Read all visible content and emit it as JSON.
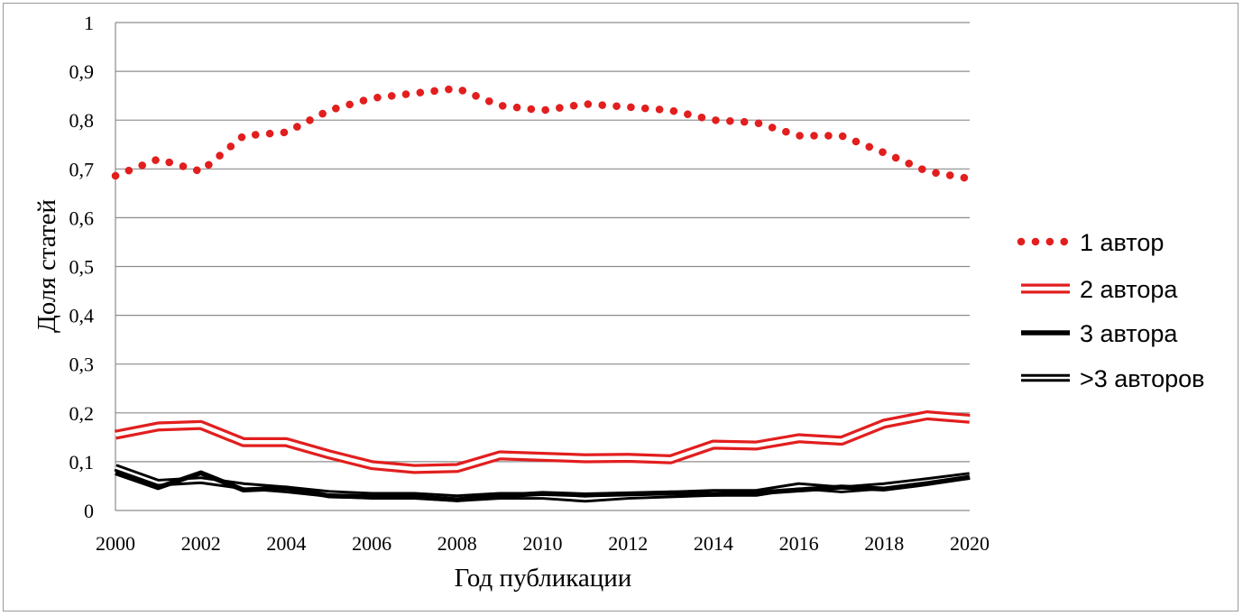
{
  "chart_data": {
    "type": "line",
    "title": "",
    "xlabel": "Год публикации",
    "ylabel": "Доля статей",
    "x": [
      2000,
      2001,
      2002,
      2003,
      2004,
      2005,
      2006,
      2007,
      2008,
      2009,
      2010,
      2011,
      2012,
      2013,
      2014,
      2015,
      2016,
      2017,
      2018,
      2019,
      2020
    ],
    "xlim": [
      2000,
      2020
    ],
    "ylim": [
      0,
      1
    ],
    "x_ticks": [
      "2000",
      "2002",
      "2004",
      "2006",
      "2008",
      "2010",
      "2012",
      "2014",
      "2016",
      "2018",
      "2020"
    ],
    "y_ticks": [
      "0",
      "0,1",
      "0,2",
      "0,3",
      "0,4",
      "0,5",
      "0,6",
      "0,7",
      "0,8",
      "0,9",
      "1"
    ],
    "grid": "horizontal",
    "legend_position": "right",
    "series": [
      {
        "name": "1 автор",
        "style": "dotted",
        "color": "#e21e1e",
        "values": [
          0.686,
          0.72,
          0.695,
          0.768,
          0.775,
          0.82,
          0.845,
          0.855,
          0.865,
          0.83,
          0.82,
          0.833,
          0.827,
          0.82,
          0.8,
          0.795,
          0.768,
          0.768,
          0.733,
          0.695,
          0.68
        ]
      },
      {
        "name": "2 автора",
        "style": "double",
        "color": "#e21e1e",
        "values": [
          0.155,
          0.172,
          0.175,
          0.14,
          0.14,
          0.115,
          0.093,
          0.085,
          0.087,
          0.113,
          0.11,
          0.107,
          0.108,
          0.105,
          0.135,
          0.133,
          0.148,
          0.143,
          0.178,
          0.195,
          0.188
        ]
      },
      {
        "name": "3 автора",
        "style": "solid",
        "color": "#000000",
        "values": [
          0.077,
          0.047,
          0.077,
          0.042,
          0.046,
          0.03,
          0.028,
          0.028,
          0.022,
          0.03,
          0.035,
          0.032,
          0.034,
          0.036,
          0.033,
          0.036,
          0.042,
          0.048,
          0.044,
          0.055,
          0.068
        ]
      },
      {
        "name": ">3 авторов",
        "style": "double",
        "color": "#000000",
        "values": [
          0.088,
          0.057,
          0.062,
          0.05,
          0.043,
          0.034,
          0.03,
          0.03,
          0.025,
          0.03,
          0.03,
          0.024,
          0.03,
          0.033,
          0.036,
          0.036,
          0.05,
          0.043,
          0.05,
          0.06,
          0.071
        ]
      }
    ]
  }
}
